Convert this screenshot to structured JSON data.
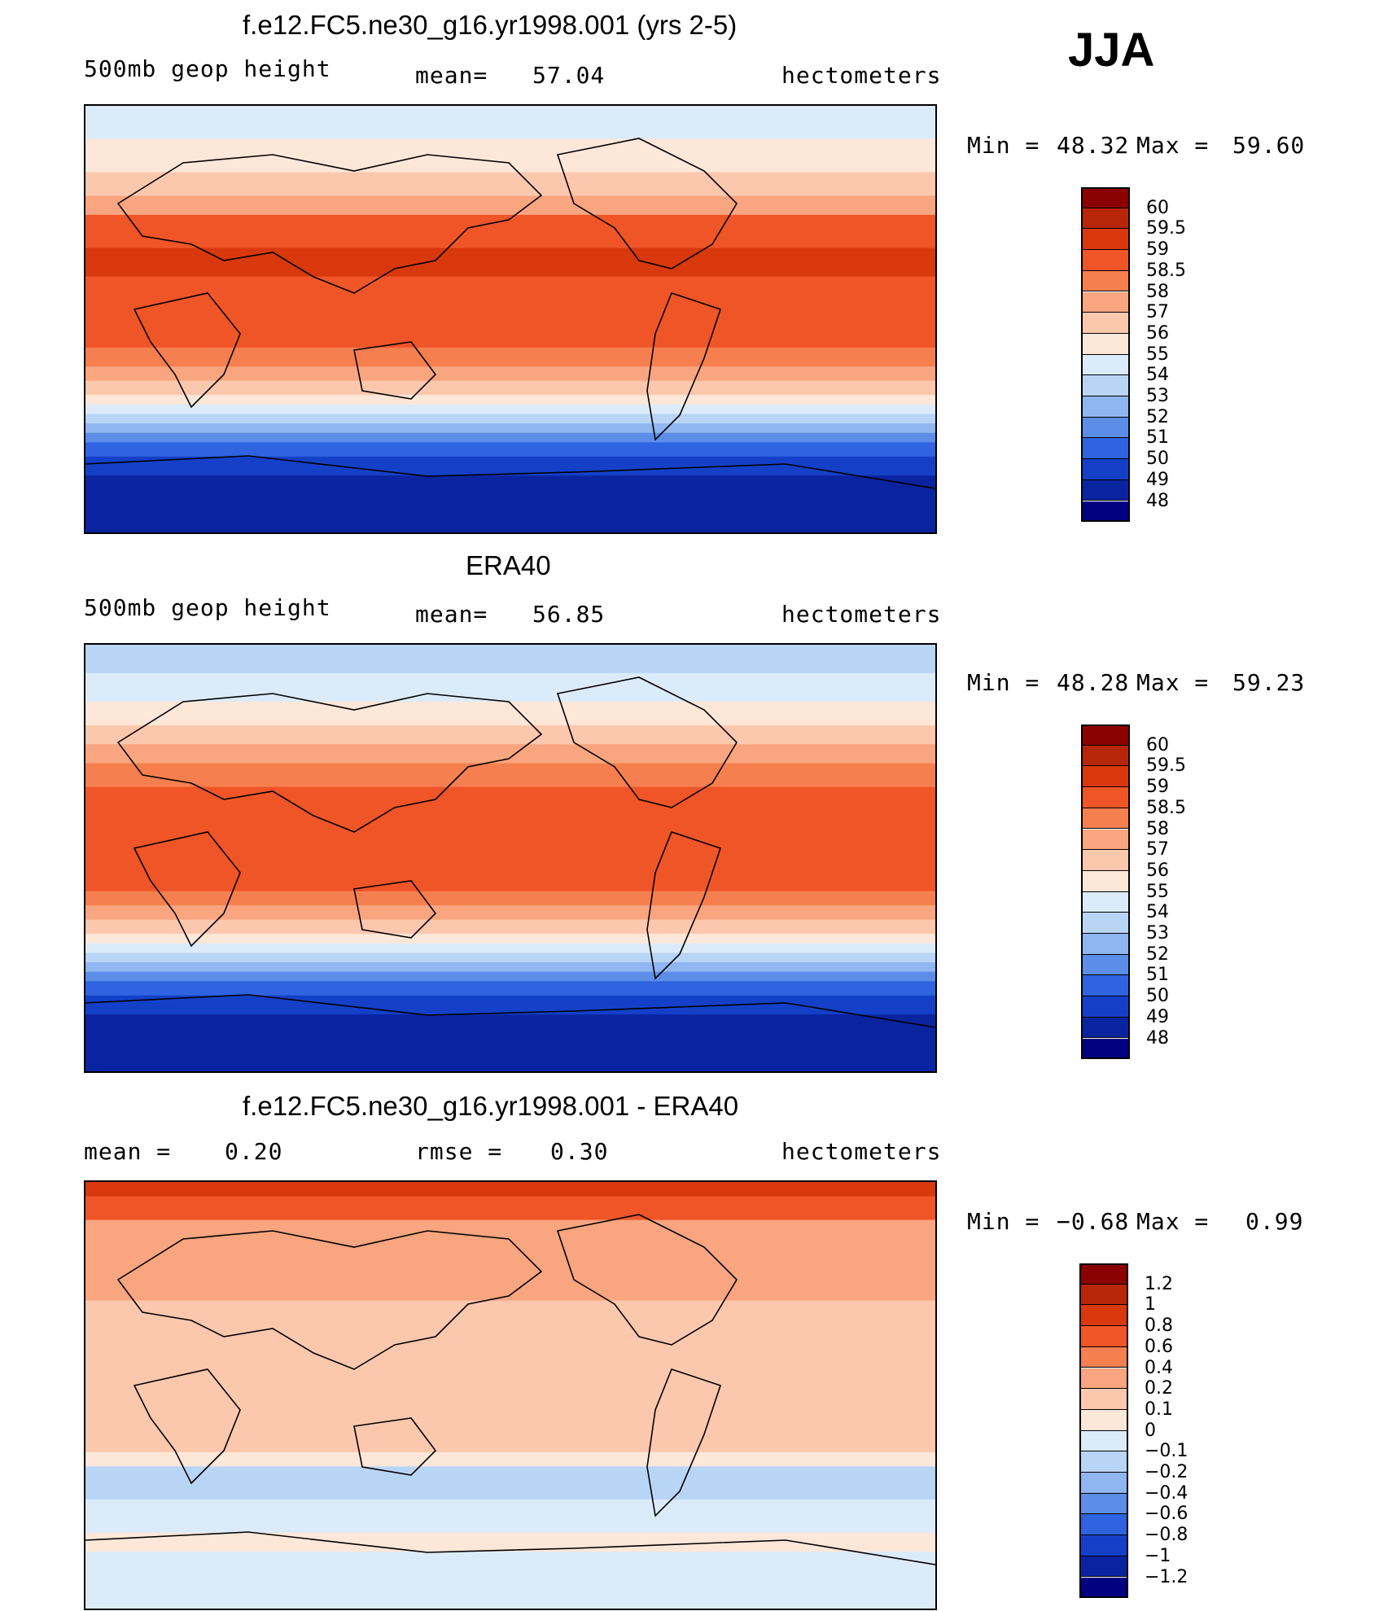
{
  "season": "JJA",
  "chart_data": [
    {
      "type": "heatmap",
      "title": "f.e12.FC5.ne30_g16.yr1998.001 (yrs 2-5)",
      "variable": "500mb geop height",
      "mean_label": "mean=",
      "mean_value": "57.04",
      "units": "hectometers",
      "min_label": "Min =",
      "min_value": "48.32",
      "max_label": "Max =",
      "max_value": "59.60",
      "levels": [
        "60",
        "59.5",
        "59",
        "58.5",
        "58",
        "57",
        "56",
        "55",
        "54",
        "53",
        "52",
        "51",
        "50",
        "49",
        "48"
      ],
      "colors": [
        "#8b0000",
        "#b8260a",
        "#d8380c",
        "#f05528",
        "#f57f4f",
        "#f9a57f",
        "#fcc8ad",
        "#fde7d8",
        "#dcebfa",
        "#b9d5f6",
        "#8fb6f0",
        "#5c8ee8",
        "#2f63df",
        "#1440c8",
        "#0a24a0",
        "#000080"
      ],
      "bands_top_to_bottom_lat": [
        {
          "lat": 90,
          "level": 8
        },
        {
          "lat": 76,
          "level": 7
        },
        {
          "lat": 62,
          "level": 6
        },
        {
          "lat": 52,
          "level": 5
        },
        {
          "lat": 44,
          "level": 3
        },
        {
          "lat": 30,
          "level": 2
        },
        {
          "lat": 18,
          "level": 3
        },
        {
          "lat": -12,
          "level": 4
        },
        {
          "lat": -20,
          "level": 5
        },
        {
          "lat": -26,
          "level": 6
        },
        {
          "lat": -32,
          "level": 7
        },
        {
          "lat": -36,
          "level": 8
        },
        {
          "lat": -40,
          "level": 9
        },
        {
          "lat": -44,
          "level": 10
        },
        {
          "lat": -48,
          "level": 11
        },
        {
          "lat": -52,
          "level": 12
        },
        {
          "lat": -58,
          "level": 13
        },
        {
          "lat": -66,
          "level": 14
        },
        {
          "lat": -90,
          "level": 14
        }
      ]
    },
    {
      "type": "heatmap",
      "title": "ERA40",
      "variable": "500mb geop height",
      "mean_label": "mean=",
      "mean_value": "56.85",
      "units": "hectometers",
      "min_label": "Min =",
      "min_value": "48.28",
      "max_label": "Max =",
      "max_value": "59.23",
      "levels": [
        "60",
        "59.5",
        "59",
        "58.5",
        "58",
        "57",
        "56",
        "55",
        "54",
        "53",
        "52",
        "51",
        "50",
        "49",
        "48"
      ],
      "colors": [
        "#8b0000",
        "#b8260a",
        "#d8380c",
        "#f05528",
        "#f57f4f",
        "#f9a57f",
        "#fcc8ad",
        "#fde7d8",
        "#dcebfa",
        "#b9d5f6",
        "#8fb6f0",
        "#5c8ee8",
        "#2f63df",
        "#1440c8",
        "#0a24a0",
        "#000080"
      ],
      "bands_top_to_bottom_lat": [
        {
          "lat": 90,
          "level": 9
        },
        {
          "lat": 78,
          "level": 8
        },
        {
          "lat": 66,
          "level": 7
        },
        {
          "lat": 56,
          "level": 6
        },
        {
          "lat": 48,
          "level": 5
        },
        {
          "lat": 40,
          "level": 4
        },
        {
          "lat": 30,
          "level": 3
        },
        {
          "lat": -14,
          "level": 4
        },
        {
          "lat": -20,
          "level": 5
        },
        {
          "lat": -26,
          "level": 6
        },
        {
          "lat": -32,
          "level": 7
        },
        {
          "lat": -36,
          "level": 8
        },
        {
          "lat": -40,
          "level": 9
        },
        {
          "lat": -44,
          "level": 10
        },
        {
          "lat": -48,
          "level": 11
        },
        {
          "lat": -52,
          "level": 12
        },
        {
          "lat": -58,
          "level": 13
        },
        {
          "lat": -66,
          "level": 14
        },
        {
          "lat": -90,
          "level": 14
        }
      ]
    },
    {
      "type": "heatmap",
      "title": "f.e12.FC5.ne30_g16.yr1998.001 - ERA40",
      "variable_label": "mean =",
      "mean_value": "0.20",
      "rmse_label": "rmse =",
      "rmse_value": "0.30",
      "units": "hectometers",
      "min_label": "Min =",
      "min_value": "−0.68",
      "max_label": "Max =",
      "max_value": "0.99",
      "levels": [
        "1.2",
        "1",
        "0.8",
        "0.6",
        "0.4",
        "0.2",
        "0.1",
        "0",
        "−0.1",
        "−0.2",
        "−0.4",
        "−0.6",
        "−0.8",
        "−1",
        "−1.2"
      ],
      "colors": [
        "#8b0000",
        "#b8260a",
        "#d8380c",
        "#f05528",
        "#f57f4f",
        "#f9a57f",
        "#fcc8ad",
        "#fde7d8",
        "#dcebfa",
        "#b9d5f6",
        "#8fb6f0",
        "#5c8ee8",
        "#2f63df",
        "#1440c8",
        "#0a24a0",
        "#000080"
      ],
      "bands_top_to_bottom_lat": [
        {
          "lat": 90,
          "level": 2
        },
        {
          "lat": 84,
          "level": 3
        },
        {
          "lat": 74,
          "level": 5
        },
        {
          "lat": 40,
          "level": 6
        },
        {
          "lat": -10,
          "level": 6
        },
        {
          "lat": -24,
          "level": 7
        },
        {
          "lat": -30,
          "level": 9
        },
        {
          "lat": -44,
          "level": 8
        },
        {
          "lat": -58,
          "level": 7
        },
        {
          "lat": -66,
          "level": 8
        },
        {
          "lat": -90,
          "level": 7
        }
      ]
    }
  ]
}
